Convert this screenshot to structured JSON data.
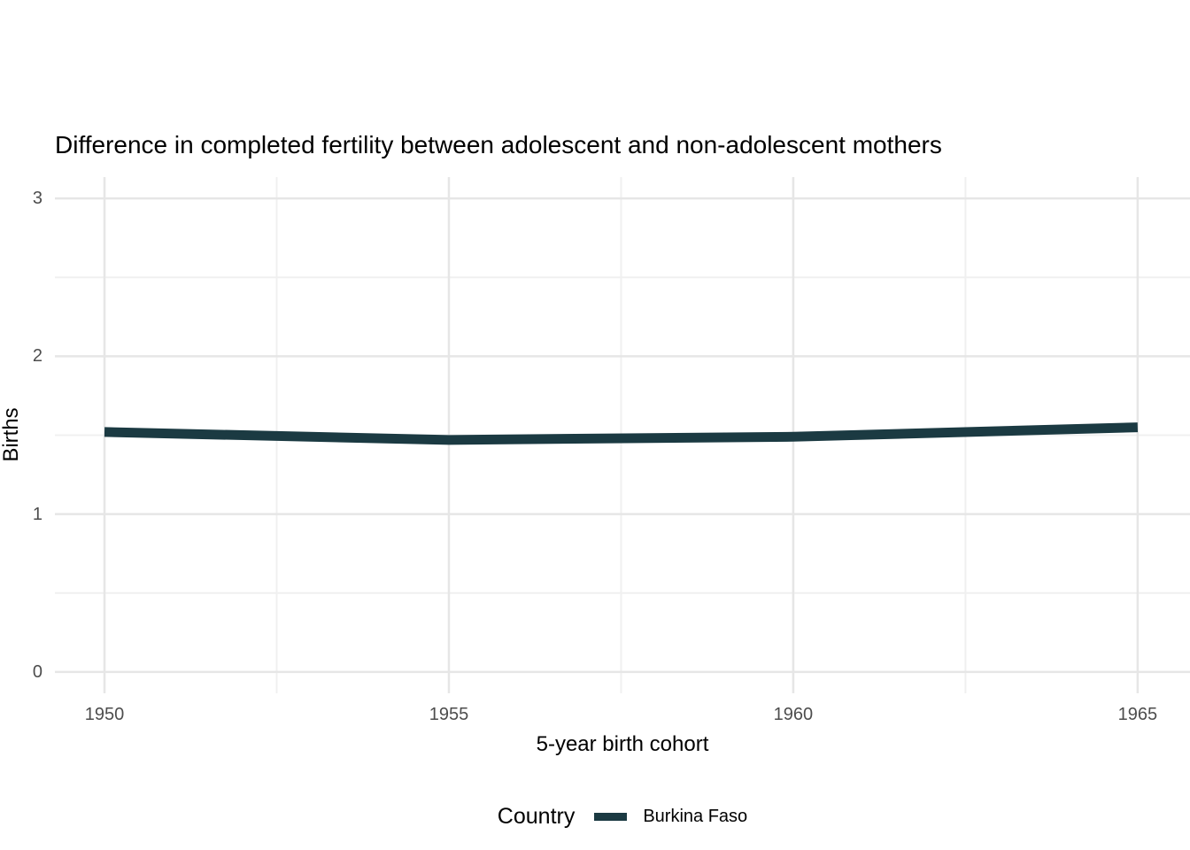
{
  "chart_data": {
    "type": "line",
    "title": "Difference in completed fertility between adolescent and non-adolescent mothers",
    "xlabel": "5-year birth cohort",
    "ylabel": "Births",
    "x": [
      1950,
      1955,
      1960,
      1965
    ],
    "series": [
      {
        "name": "Burkina Faso",
        "color": "#1b3a42",
        "values": [
          1.52,
          1.47,
          1.49,
          1.55
        ]
      }
    ],
    "x_ticks": [
      1950,
      1955,
      1960,
      1965
    ],
    "y_ticks": [
      0,
      1,
      2,
      3
    ],
    "x_minor_ticks": [
      1952.5,
      1957.5,
      1962.5
    ],
    "y_minor_ticks": [
      0.5,
      1.5,
      2.5
    ],
    "x_domain": [
      1949.28,
      1965.76
    ],
    "y_domain": [
      -0.135,
      3.135
    ],
    "grid": "major-and-minor",
    "legend": {
      "title": "Country",
      "position": "bottom",
      "entries": [
        "Burkina Faso"
      ]
    }
  },
  "style": {
    "background": "#ffffff",
    "line_color": "#1b3a42",
    "line_width": 11,
    "grid_major_color": "#e6e6e6",
    "grid_minor_color": "#f0f0f0",
    "tick_label_color": "#4d4d4d",
    "text_color": "#000000"
  }
}
